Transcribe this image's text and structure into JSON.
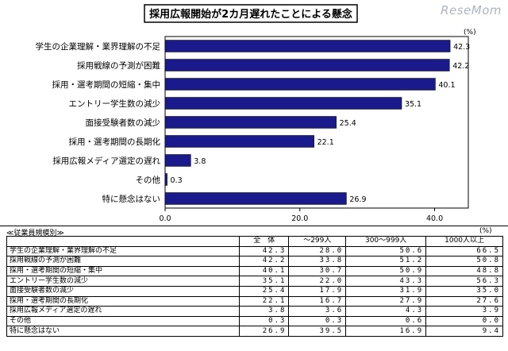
{
  "chart_data": {
    "type": "bar",
    "orientation": "horizontal",
    "title": "採用広報開始が2カ月遅れたことによる懸念",
    "unit": "(%)",
    "categories": [
      "学生の企業理解・業界理解の不足",
      "採用戦線の予測が困難",
      "採用・選考期間の短縮・集中",
      "エントリー学生数の減少",
      "面接受験者数の減少",
      "採用・選考期間の長期化",
      "採用広報メディア選定の遅れ",
      "その他",
      "特に懸念はない"
    ],
    "values": [
      42.3,
      42.2,
      40.1,
      35.1,
      25.4,
      22.1,
      3.8,
      0.3,
      26.9
    ],
    "value_labels": [
      "42.3",
      "42.2",
      "40.1",
      "35.1",
      "25.4",
      "22.1",
      "3.8",
      "0.3",
      "26.9"
    ],
    "xlim": [
      0,
      45
    ],
    "xticks": [
      "0.0",
      "20.0",
      "40.0"
    ],
    "grid": false,
    "bar_color": "#1a1a8c"
  },
  "watermark": "ReseMom",
  "table": {
    "caption": "≪従業員規模別≫",
    "unit": "(%)",
    "columns": [
      "全　体",
      "～299人",
      "300～999人",
      "1000人以上"
    ],
    "rows": [
      {
        "label": "学生の企業理解・業界理解の不足",
        "values": [
          "42.3",
          "28.0",
          "50.6",
          "66.5"
        ]
      },
      {
        "label": "採用戦線の予測が困難",
        "values": [
          "42.2",
          "33.8",
          "51.2",
          "50.8"
        ]
      },
      {
        "label": "採用・選考期間の短縮・集中",
        "values": [
          "40.1",
          "30.7",
          "50.9",
          "48.8"
        ]
      },
      {
        "label": "エントリー学生数の減少",
        "values": [
          "35.1",
          "22.0",
          "43.3",
          "56.3"
        ]
      },
      {
        "label": "面接受験者数の減少",
        "values": [
          "25.4",
          "17.9",
          "31.9",
          "35.0"
        ]
      },
      {
        "label": "採用・選考期間の長期化",
        "values": [
          "22.1",
          "16.7",
          "27.9",
          "27.6"
        ]
      },
      {
        "label": "採用広報メディア選定の遅れ",
        "values": [
          "3.8",
          "3.6",
          "4.3",
          "3.9"
        ]
      },
      {
        "label": "その他",
        "values": [
          "0.3",
          "0.3",
          "0.6",
          "0.0"
        ]
      },
      {
        "label": "特に懸念はない",
        "values": [
          "26.9",
          "39.5",
          "16.9",
          "9.4"
        ]
      }
    ]
  }
}
